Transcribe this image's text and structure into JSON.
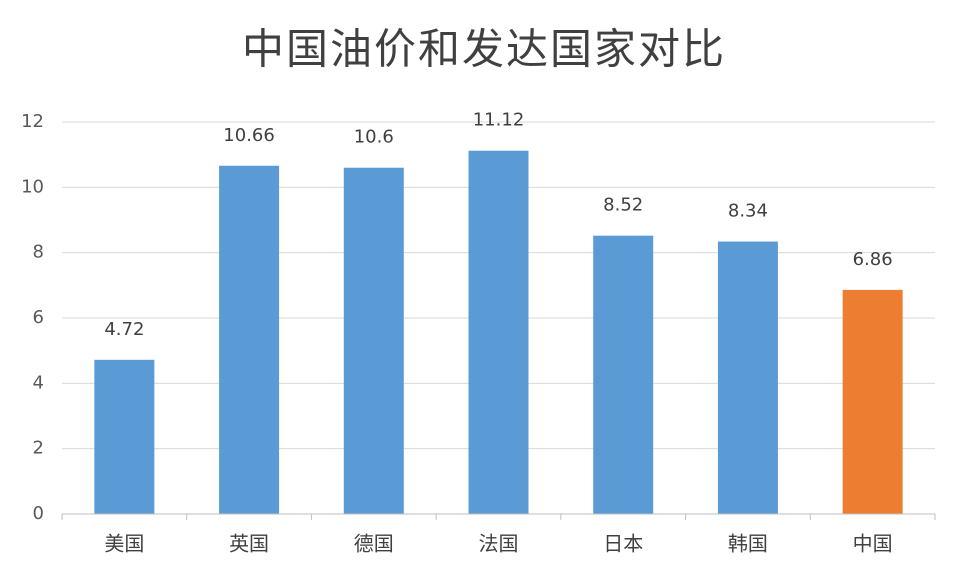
{
  "chart_data": {
    "type": "bar",
    "title": "中国油价和发达国家对比",
    "categories": [
      "美国",
      "英国",
      "德国",
      "法国",
      "日本",
      "韩国",
      "中国"
    ],
    "values": [
      4.72,
      10.66,
      10.6,
      11.12,
      8.52,
      8.34,
      6.86
    ],
    "colors": [
      "#5b9bd5",
      "#5b9bd5",
      "#5b9bd5",
      "#5b9bd5",
      "#5b9bd5",
      "#5b9bd5",
      "#ed7d31"
    ],
    "ylim": [
      0,
      12
    ],
    "yticks": [
      0,
      2,
      4,
      6,
      8,
      10,
      12
    ],
    "grid": true
  }
}
